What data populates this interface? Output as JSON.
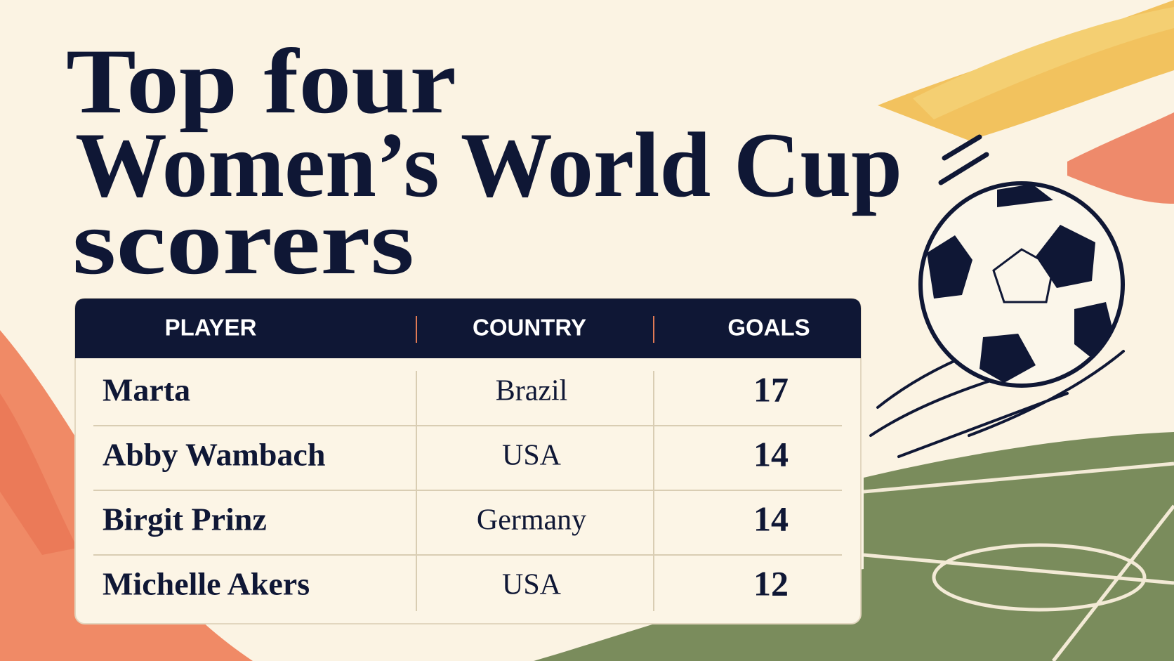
{
  "header": {
    "title_lines": [
      "Top four",
      "Women’s World Cup",
      "scorers"
    ]
  },
  "table": {
    "columns": [
      "PLAYER",
      "COUNTRY",
      "GOALS"
    ],
    "rows": [
      [
        "Marta",
        "Brazil",
        17
      ],
      [
        "Abby Wambach",
        "USA",
        14
      ],
      [
        "Birgit Prinz",
        "Germany",
        14
      ],
      [
        "Michelle Akers",
        "USA",
        12
      ]
    ]
  }
}
